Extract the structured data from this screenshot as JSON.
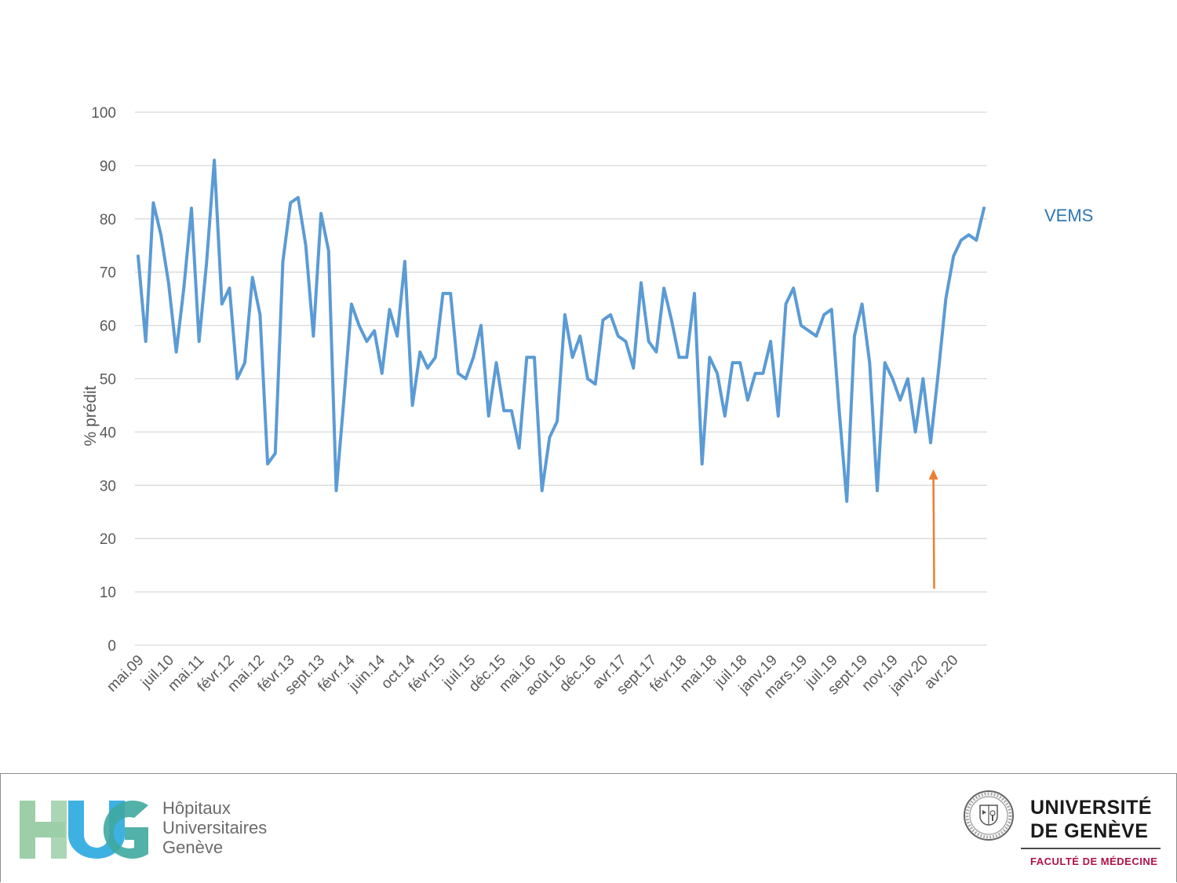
{
  "chart_data": {
    "type": "line",
    "title": "",
    "xlabel": "",
    "ylabel": "% prédit",
    "ylim": [
      0,
      100
    ],
    "yticks": [
      0,
      10,
      20,
      30,
      40,
      50,
      60,
      70,
      80,
      90,
      100
    ],
    "grid": true,
    "x_tick_labels": [
      "mai.09",
      "juil.10",
      "mai.11",
      "févr.12",
      "mai.12",
      "févr.13",
      "sept.13",
      "févr.14",
      "juin.14",
      "oct.14",
      "févr.15",
      "juil.15",
      "déc.15",
      "mai.16",
      "août.16",
      "déc.16",
      "avr.17",
      "sept.17",
      "févr.18",
      "mai.18",
      "juil.18",
      "janv.19",
      "mars.19",
      "juil.19",
      "sept.19",
      "nov.19",
      "janv.20",
      "avr.20"
    ],
    "series": [
      {
        "name": "VEMS",
        "color": "#5B9BD5",
        "values": [
          73,
          57,
          83,
          77,
          68,
          55,
          67,
          82,
          57,
          72,
          91,
          64,
          67,
          50,
          53,
          69,
          62,
          34,
          36,
          72,
          83,
          84,
          75,
          58,
          81,
          74,
          29,
          46,
          64,
          60,
          57,
          59,
          51,
          63,
          58,
          72,
          45,
          55,
          52,
          54,
          66,
          66,
          51,
          50,
          54,
          60,
          43,
          53,
          44,
          44,
          37,
          54,
          54,
          29,
          39,
          42,
          62,
          54,
          58,
          50,
          49,
          61,
          62,
          58,
          57,
          52,
          68,
          57,
          55,
          67,
          61,
          54,
          54,
          66,
          34,
          54,
          51,
          43,
          53,
          53,
          46,
          51,
          51,
          57,
          43,
          64,
          67,
          60,
          59,
          58,
          62,
          63,
          44,
          27,
          58,
          64,
          53,
          29,
          53,
          50,
          46,
          50,
          40,
          50,
          38,
          51,
          65,
          73,
          76,
          77,
          76,
          82
        ]
      }
    ],
    "annotations": [
      {
        "type": "arrow",
        "color": "#ED7D31",
        "x_label": "janv.20",
        "y_from": 10,
        "y_to": 33
      }
    ]
  },
  "footer": {
    "hug_lines": [
      "Hôpitaux",
      "Universitaires",
      "Genève"
    ],
    "unige_lines": [
      "UNIVERSITÉ",
      "DE GENÈVE"
    ],
    "unige_faculty": "FACULTÉ DE MÉDECINE",
    "logo_colors": {
      "green": "#9CCFA8",
      "teal": "#3FA9A0",
      "blue": "#29A8E0"
    }
  }
}
